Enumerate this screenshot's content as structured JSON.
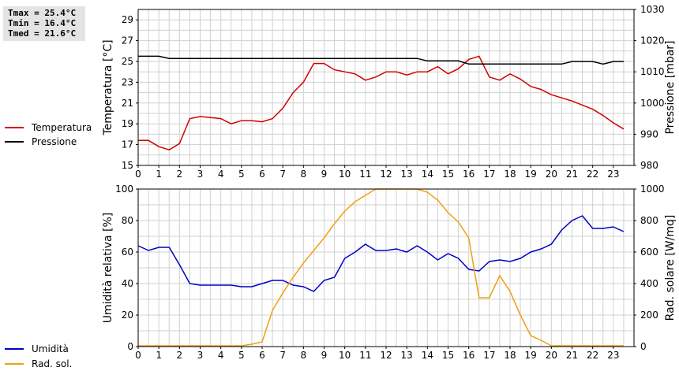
{
  "stats": {
    "tmax": "Tmax = 25.4°C",
    "tmin": "Tmin = 16.4°C",
    "tmed": "Tmed = 21.6°C"
  },
  "legend_top": [
    {
      "label": "Temperatura",
      "color": "#d40000"
    },
    {
      "label": "Pressione",
      "color": "#000000"
    }
  ],
  "legend_bottom": [
    {
      "label": "Umidità",
      "color": "#0000c8"
    },
    {
      "label": "Rad. sol.",
      "color": "#f0a010"
    }
  ],
  "chart_data": [
    {
      "type": "line",
      "ylabel": "Temperatura [°C]",
      "y2label": "Pressione [mbar]",
      "xlim": [
        0,
        24
      ],
      "ylim": [
        15,
        30
      ],
      "y2lim": [
        980,
        1030
      ],
      "xticks": [
        0,
        1,
        2,
        3,
        4,
        5,
        6,
        7,
        8,
        9,
        10,
        11,
        12,
        13,
        14,
        15,
        16,
        17,
        18,
        19,
        20,
        21,
        22,
        23
      ],
      "yticks": [
        15,
        17,
        19,
        21,
        23,
        25,
        27,
        29
      ],
      "y2ticks": [
        980,
        990,
        1000,
        1010,
        1020,
        1030
      ],
      "grid": true,
      "series": [
        {
          "name": "Temperatura",
          "axis": "left",
          "color": "#d40000",
          "x": [
            0,
            0.5,
            1,
            1.5,
            2,
            2.5,
            3,
            3.5,
            4,
            4.5,
            5,
            5.5,
            6,
            6.5,
            7,
            7.5,
            8,
            8.5,
            9,
            9.5,
            10,
            10.5,
            11,
            11.5,
            12,
            12.5,
            13,
            13.5,
            14,
            14.5,
            15,
            15.5,
            16,
            16.5,
            17,
            17.5,
            18,
            18.5,
            19,
            19.5,
            20,
            20.5,
            21,
            21.5,
            22,
            22.5,
            23,
            23.5
          ],
          "values": [
            17.4,
            17.4,
            16.8,
            16.5,
            17.1,
            19.5,
            19.7,
            19.6,
            19.5,
            19.0,
            19.3,
            19.3,
            19.2,
            19.5,
            20.5,
            22.0,
            23.0,
            24.8,
            24.8,
            24.2,
            24.0,
            23.8,
            23.2,
            23.5,
            24.0,
            24.0,
            23.7,
            24.0,
            24.0,
            24.5,
            23.8,
            24.3,
            25.2,
            25.5,
            23.5,
            23.2,
            23.8,
            23.3,
            22.6,
            22.3,
            21.8,
            21.5,
            21.2,
            20.8,
            20.4,
            19.8,
            19.1,
            18.5
          ]
        },
        {
          "name": "Pressione",
          "axis": "right",
          "color": "#000000",
          "x": [
            0,
            1,
            1.5,
            2,
            3,
            4,
            5,
            6,
            7,
            8,
            9,
            10,
            11,
            12,
            13,
            13.5,
            14,
            15,
            15.5,
            16,
            16.5,
            17,
            18,
            19,
            20,
            20.5,
            21,
            22,
            22.5,
            23,
            23.5
          ],
          "values": [
            1015,
            1015,
            1014.3,
            1014.3,
            1014.3,
            1014.3,
            1014.3,
            1014.3,
            1014.3,
            1014.3,
            1014.3,
            1014.3,
            1014.3,
            1014.3,
            1014.3,
            1014.3,
            1013.5,
            1013.5,
            1013.5,
            1012.5,
            1012.5,
            1012.5,
            1012.5,
            1012.5,
            1012.5,
            1012.5,
            1013.3,
            1013.3,
            1012.5,
            1013.3,
            1013.3
          ]
        }
      ]
    },
    {
      "type": "line",
      "ylabel": "Umidità relativa [%]",
      "y2label": "Rad. solare [W/mq]",
      "xlim": [
        0,
        24
      ],
      "ylim": [
        0,
        100
      ],
      "y2lim": [
        0,
        1000
      ],
      "xticks": [
        0,
        1,
        2,
        3,
        4,
        5,
        6,
        7,
        8,
        9,
        10,
        11,
        12,
        13,
        14,
        15,
        16,
        17,
        18,
        19,
        20,
        21,
        22,
        23
      ],
      "yticks": [
        0,
        20,
        40,
        60,
        80,
        100
      ],
      "y2ticks": [
        0,
        200,
        400,
        600,
        800,
        1000
      ],
      "grid": true,
      "series": [
        {
          "name": "Umidità",
          "axis": "left",
          "color": "#0000c8",
          "x": [
            0,
            0.5,
            1,
            1.5,
            2,
            2.5,
            3,
            3.5,
            4,
            4.5,
            5,
            5.5,
            6,
            6.5,
            7,
            7.5,
            8,
            8.5,
            9,
            9.5,
            10,
            10.5,
            11,
            11.5,
            12,
            12.5,
            13,
            13.5,
            14,
            14.5,
            15,
            15.5,
            16,
            16.5,
            17,
            17.5,
            18,
            18.5,
            19,
            19.5,
            20,
            20.5,
            21,
            21.5,
            22,
            22.5,
            23,
            23.5
          ],
          "values": [
            64,
            61,
            63,
            63,
            52,
            40,
            39,
            39,
            39,
            39,
            38,
            38,
            40,
            42,
            42,
            39,
            38,
            35,
            42,
            44,
            56,
            60,
            65,
            61,
            61,
            62,
            60,
            64,
            60,
            55,
            59,
            56,
            49,
            48,
            54,
            55,
            54,
            56,
            60,
            62,
            65,
            74,
            80,
            83,
            75,
            75,
            76,
            73
          ]
        },
        {
          "name": "Rad. sol.",
          "axis": "right",
          "color": "#f0a010",
          "x": [
            0,
            0.5,
            1,
            1.5,
            2,
            2.5,
            3,
            3.5,
            4,
            4.5,
            5,
            5.5,
            6,
            6.5,
            7,
            7.5,
            8,
            8.5,
            9,
            9.5,
            10,
            10.5,
            11,
            11.5,
            12,
            12.5,
            13,
            13.5,
            14,
            14.5,
            15,
            15.5,
            16,
            16.5,
            17,
            17.5,
            18,
            18.5,
            19,
            19.5,
            20,
            20.5,
            21,
            21.5,
            22,
            22.5,
            23,
            23.5
          ],
          "values": [
            5,
            5,
            5,
            5,
            5,
            5,
            5,
            5,
            5,
            5,
            5,
            15,
            30,
            230,
            340,
            440,
            530,
            610,
            690,
            780,
            860,
            920,
            960,
            1000,
            1000,
            1000,
            1000,
            1000,
            980,
            930,
            850,
            790,
            690,
            310,
            310,
            450,
            350,
            200,
            70,
            40,
            5,
            5,
            5,
            5,
            5,
            5,
            5,
            5
          ]
        }
      ]
    }
  ]
}
